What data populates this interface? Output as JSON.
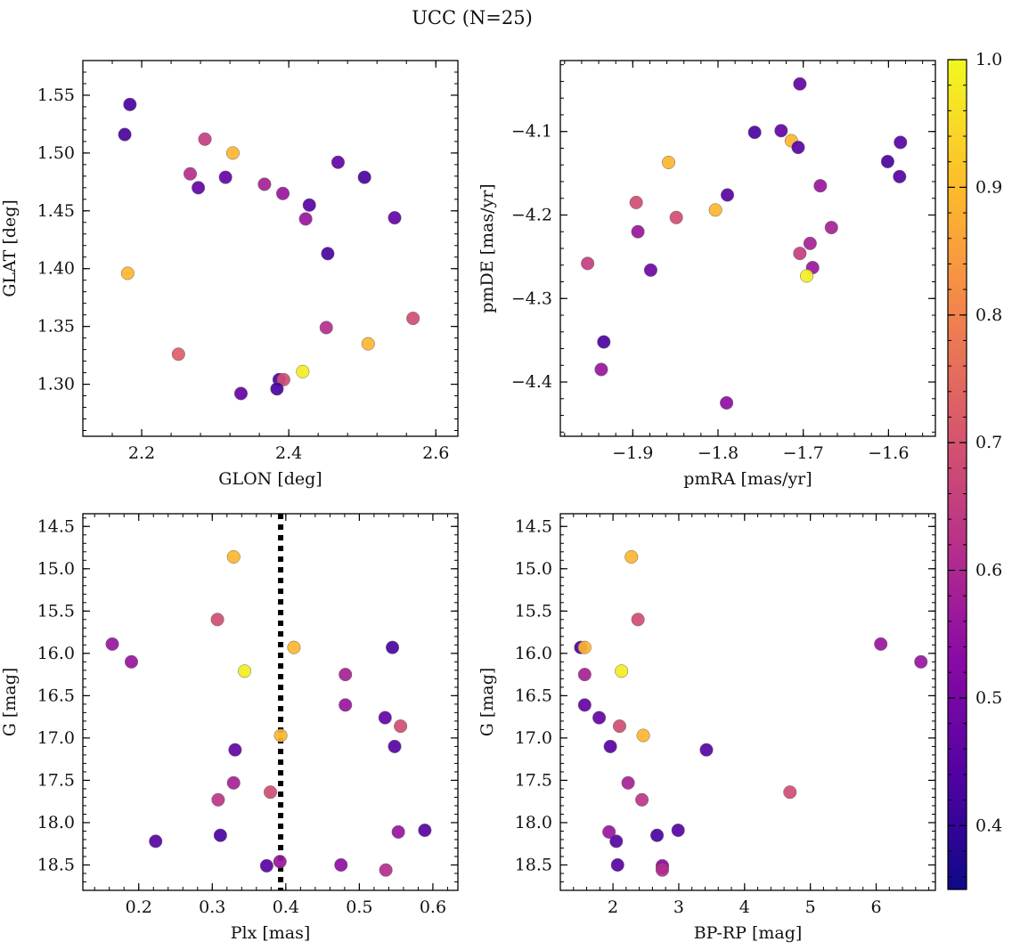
{
  "figure_title": "UCC (N=25)",
  "colorbar": {
    "label_range": [
      0.35,
      1.0
    ],
    "ticks": [
      "0.4",
      "0.5",
      "0.6",
      "0.7",
      "0.8",
      "0.9",
      "1.0"
    ],
    "tick_values": [
      0.4,
      0.5,
      0.6,
      0.7,
      0.8,
      0.9,
      1.0
    ],
    "colormap": "plasma"
  },
  "chart_data": [
    {
      "type": "scatter",
      "id": "glon-glat",
      "xlabel": "GLON [deg]",
      "ylabel": "GLAT [deg]",
      "xlim": [
        2.12,
        2.63
      ],
      "ylim": [
        1.255,
        1.58
      ],
      "xticks": [
        2.2,
        2.4,
        2.6
      ],
      "xtick_labels": [
        "2.2",
        "2.4",
        "2.6"
      ],
      "yticks": [
        1.3,
        1.35,
        1.4,
        1.45,
        1.5,
        1.55
      ],
      "ytick_labels": [
        "1.30",
        "1.35",
        "1.40",
        "1.45",
        "1.50",
        "1.55"
      ],
      "x": [
        2.184,
        2.177,
        2.286,
        2.324,
        2.266,
        2.277,
        2.314,
        2.367,
        2.392,
        2.467,
        2.503,
        2.428,
        2.423,
        2.544,
        2.453,
        2.181,
        2.569,
        2.451,
        2.508,
        2.25,
        2.419,
        2.335,
        2.387,
        2.393,
        2.384
      ],
      "y": [
        1.542,
        1.516,
        1.512,
        1.5,
        1.482,
        1.47,
        1.479,
        1.473,
        1.465,
        1.492,
        1.479,
        1.455,
        1.443,
        1.444,
        1.413,
        1.396,
        1.357,
        1.349,
        1.335,
        1.326,
        1.311,
        1.292,
        1.304,
        1.304,
        1.296
      ],
      "c": [
        0.38,
        0.38,
        0.62,
        0.88,
        0.58,
        0.42,
        0.42,
        0.55,
        0.52,
        0.42,
        0.38,
        0.4,
        0.52,
        0.42,
        0.38,
        0.88,
        0.66,
        0.58,
        0.88,
        0.7,
        0.98,
        0.42,
        0.38,
        0.66,
        0.38
      ]
    },
    {
      "type": "scatter",
      "id": "pmra-pmde",
      "xlabel": "pmRA [mas/yr]",
      "ylabel": "pmDE [mas/yr]",
      "xlim": [
        -1.985,
        -1.545
      ],
      "ylim": [
        -4.465,
        -4.015
      ],
      "xticks": [
        -1.9,
        -1.8,
        -1.7,
        -1.6
      ],
      "xtick_labels": [
        "−1.9",
        "−1.8",
        "−1.7",
        "−1.6"
      ],
      "yticks": [
        -4.4,
        -4.3,
        -4.2,
        -4.1
      ],
      "ytick_labels": [
        "−4.4",
        "−4.3",
        "−4.2",
        "−4.1"
      ],
      "x": [
        -1.704,
        -1.757,
        -1.726,
        -1.714,
        -1.706,
        -1.601,
        -1.586,
        -1.587,
        -1.858,
        -1.789,
        -1.68,
        -1.803,
        -1.896,
        -1.849,
        -1.667,
        -1.894,
        -1.692,
        -1.704,
        -1.953,
        -1.879,
        -1.689,
        -1.696,
        -1.934,
        -1.937,
        -1.79
      ],
      "y": [
        -4.043,
        -4.101,
        -4.099,
        -4.111,
        -4.119,
        -4.136,
        -4.113,
        -4.154,
        -4.137,
        -4.176,
        -4.165,
        -4.194,
        -4.185,
        -4.203,
        -4.215,
        -4.22,
        -4.234,
        -4.246,
        -4.258,
        -4.266,
        -4.263,
        -4.273,
        -4.352,
        -4.385,
        -4.425
      ],
      "c": [
        0.42,
        0.38,
        0.42,
        0.88,
        0.4,
        0.38,
        0.4,
        0.4,
        0.88,
        0.4,
        0.52,
        0.88,
        0.66,
        0.66,
        0.55,
        0.52,
        0.55,
        0.62,
        0.62,
        0.44,
        0.52,
        0.98,
        0.38,
        0.52,
        0.5
      ]
    },
    {
      "type": "scatter",
      "id": "plx-g",
      "xlabel": "Plx [mas]",
      "ylabel": "G [mag]",
      "xlim": [
        0.124,
        0.634
      ],
      "ylim": [
        18.8,
        14.35
      ],
      "xticks": [
        0.1,
        0.2,
        0.3,
        0.4,
        0.5,
        0.6
      ],
      "xtick_labels": [
        "0.1",
        "0.2",
        "0.3",
        "0.4",
        "0.5",
        "0.6"
      ],
      "yticks": [
        14.5,
        15.0,
        15.5,
        16.0,
        16.5,
        17.0,
        17.5,
        18.0,
        18.5
      ],
      "ytick_labels": [
        "14.5",
        "15.0",
        "15.5",
        "16.0",
        "16.5",
        "17.0",
        "17.5",
        "18.0",
        "18.5"
      ],
      "vline": 0.393,
      "x": [
        0.329,
        0.307,
        0.164,
        0.19,
        0.411,
        0.545,
        0.344,
        0.481,
        0.481,
        0.535,
        0.556,
        0.393,
        0.331,
        0.548,
        0.329,
        0.379,
        0.308,
        0.553,
        0.589,
        0.311,
        0.223,
        0.392,
        0.374,
        0.475,
        0.536
      ],
      "y": [
        14.86,
        15.6,
        15.89,
        16.1,
        15.93,
        15.93,
        16.21,
        16.25,
        16.61,
        16.76,
        16.86,
        16.97,
        17.14,
        17.1,
        17.53,
        17.64,
        17.73,
        18.11,
        18.09,
        18.15,
        18.22,
        18.46,
        18.51,
        18.5,
        18.56
      ],
      "c": [
        0.88,
        0.66,
        0.52,
        0.52,
        0.88,
        0.38,
        0.98,
        0.55,
        0.52,
        0.42,
        0.66,
        0.88,
        0.42,
        0.4,
        0.55,
        0.66,
        0.6,
        0.52,
        0.4,
        0.38,
        0.4,
        0.52,
        0.4,
        0.5,
        0.58
      ]
    },
    {
      "type": "scatter",
      "id": "bprp-g",
      "xlabel": "BP-RP [mag]",
      "ylabel": "G [mag]",
      "xlim": [
        1.2,
        6.9
      ],
      "ylim": [
        18.8,
        14.35
      ],
      "xticks": [
        2,
        3,
        4,
        5,
        6
      ],
      "xtick_labels": [
        "2",
        "3",
        "4",
        "5",
        "6"
      ],
      "yticks": [
        14.5,
        15.0,
        15.5,
        16.0,
        16.5,
        17.0,
        17.5,
        18.0,
        18.5
      ],
      "ytick_labels": [
        "14.5",
        "15.0",
        "15.5",
        "16.0",
        "16.5",
        "17.0",
        "17.5",
        "18.0",
        "18.5"
      ],
      "x": [
        2.28,
        2.38,
        6.07,
        6.68,
        1.51,
        1.57,
        2.13,
        1.57,
        1.57,
        1.79,
        2.1,
        2.46,
        3.42,
        1.96,
        2.23,
        4.69,
        2.44,
        1.94,
        2.99,
        2.67,
        2.05,
        2.75,
        2.07,
        2.75,
        2.75
      ],
      "y": [
        14.86,
        15.6,
        15.89,
        16.1,
        15.93,
        15.93,
        16.21,
        16.25,
        16.61,
        16.76,
        16.86,
        16.97,
        17.14,
        17.1,
        17.53,
        17.64,
        17.73,
        18.11,
        18.09,
        18.15,
        18.22,
        18.53,
        18.5,
        18.51,
        18.56
      ],
      "c": [
        0.88,
        0.66,
        0.52,
        0.52,
        0.38,
        0.88,
        0.98,
        0.55,
        0.42,
        0.42,
        0.66,
        0.88,
        0.4,
        0.4,
        0.55,
        0.66,
        0.6,
        0.52,
        0.4,
        0.38,
        0.4,
        0.38,
        0.4,
        0.52,
        0.58
      ]
    }
  ]
}
